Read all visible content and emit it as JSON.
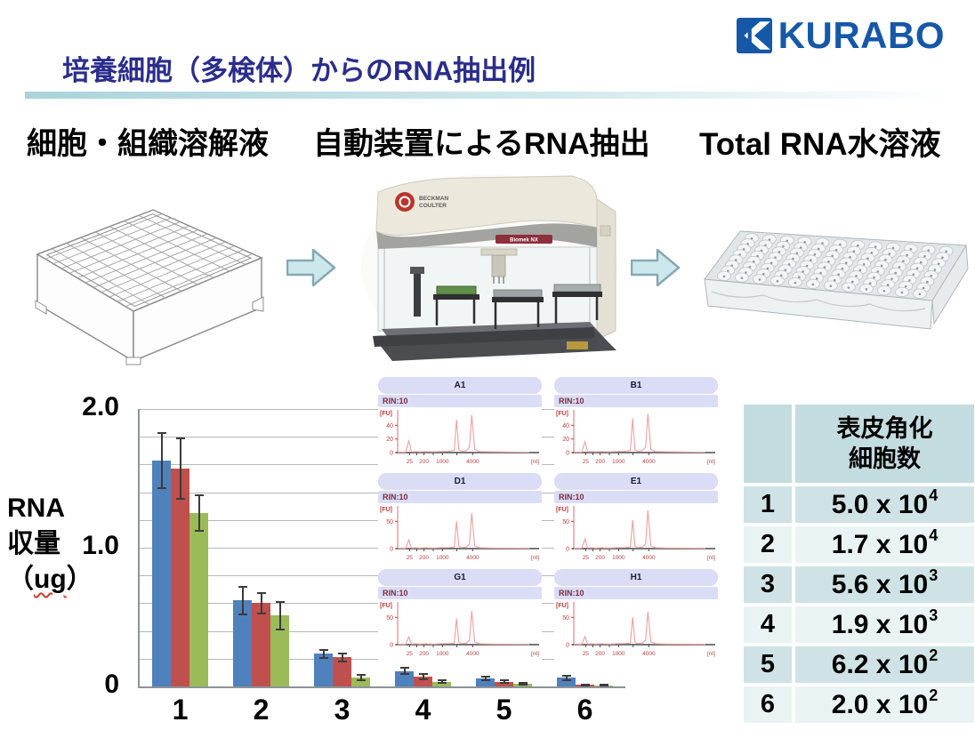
{
  "brand": {
    "logo_text": "KURABO",
    "color": "#1558a8"
  },
  "title": {
    "text": "培養細胞（多検体）からのRNA抽出例",
    "color": "#2b2d8c"
  },
  "workflow": {
    "steps": [
      {
        "label": "細胞・組織溶解液",
        "image": "96-deepwell-plate"
      },
      {
        "label": "自動装置によるRNA抽出",
        "image": "automated-liquid-handler"
      },
      {
        "label": "Total RNA水溶液",
        "image": "96-well-clear-microplate"
      }
    ],
    "machine": {
      "brand1": "BECKMAN",
      "brand2": "COULTER",
      "model": "Biomek NX"
    },
    "arrow_color": "#cde8ec"
  },
  "chart_data": [
    {
      "type": "bar",
      "categories": [
        "1",
        "2",
        "3",
        "4",
        "5",
        "6"
      ],
      "series": [
        {
          "name": "blue",
          "color": "#4F81BD",
          "values": [
            1.63,
            0.62,
            0.235,
            0.11,
            0.06,
            0.062
          ],
          "errors": [
            0.2,
            0.1,
            0.03,
            0.022,
            0.012,
            0.015
          ]
        },
        {
          "name": "red",
          "color": "#C0504D",
          "values": [
            1.57,
            0.6,
            0.21,
            0.07,
            0.035,
            0.012
          ],
          "errors": [
            0.22,
            0.072,
            0.028,
            0.018,
            0.008,
            0.004
          ]
        },
        {
          "name": "green",
          "color": "#9BBB59",
          "values": [
            1.25,
            0.51,
            0.065,
            0.035,
            0.02,
            0.007
          ],
          "errors": [
            0.13,
            0.1,
            0.02,
            0.012,
            0.006,
            0.003
          ]
        }
      ],
      "ylabel": {
        "l1": "RNA",
        "l2": "収量",
        "open": "（",
        "unit": "ug",
        "close": "）"
      },
      "xlabel": "",
      "ylim": [
        0,
        2.0
      ],
      "grid_interval": 0.2,
      "grid": true,
      "yticks": [
        {
          "value": 0,
          "label": "0"
        },
        {
          "value": 1.0,
          "label": "1.0"
        },
        {
          "value": 2.0,
          "label": "2.0"
        }
      ]
    },
    {
      "type": "line",
      "description": "bioanalyzer-electropherograms",
      "y_unit": "[FU]",
      "x_unit": "[nt]",
      "x_ticks_labeled": [
        {
          "label": "25",
          "pos": 0.09
        },
        {
          "label": "200",
          "pos": 0.2
        },
        {
          "label": "1000",
          "pos": 0.34
        },
        {
          "label": "4000",
          "pos": 0.57
        }
      ],
      "x_ticks_minor": [
        0.145,
        0.27,
        0.45
      ],
      "panels": [
        {
          "name": "A1",
          "rin": "RIN:10",
          "yticks": [
            0,
            20,
            40
          ],
          "ymax": 60,
          "marker_peak": 17,
          "peak_18s": 48,
          "peak_28s": 55
        },
        {
          "name": "B1",
          "rin": "RIN:10",
          "yticks": [
            0,
            20,
            40
          ],
          "ymax": 60,
          "marker_peak": 16,
          "peak_18s": 50,
          "peak_28s": 57
        },
        {
          "name": "D1",
          "rin": "RIN:10",
          "yticks": [
            0,
            50
          ],
          "ymax": 75,
          "marker_peak": 16,
          "peak_18s": 50,
          "peak_28s": 65
        },
        {
          "name": "E1",
          "rin": "RIN:10",
          "yticks": [
            0,
            50
          ],
          "ymax": 75,
          "marker_peak": 18,
          "peak_18s": 52,
          "peak_28s": 70
        },
        {
          "name": "G1",
          "rin": "RIN:10",
          "yticks": [
            0,
            50
          ],
          "ymax": 75,
          "marker_peak": 14,
          "peak_18s": 48,
          "peak_28s": 62
        },
        {
          "name": "H1",
          "rin": "RIN:10",
          "yticks": [
            0,
            50
          ],
          "ymax": 75,
          "marker_peak": 15,
          "peak_18s": 50,
          "peak_28s": 60
        }
      ]
    }
  ],
  "table": {
    "header": {
      "col1": "",
      "col2_line1": "表皮角化",
      "col2_line2": "細胞数"
    },
    "rows": [
      {
        "index": "1",
        "value": "5.0 x 10",
        "exp": "4"
      },
      {
        "index": "2",
        "value": "1.7 x 10",
        "exp": "4"
      },
      {
        "index": "3",
        "value": "5.6 x 10",
        "exp": "3"
      },
      {
        "index": "4",
        "value": "1.9 x 10",
        "exp": "3"
      },
      {
        "index": "5",
        "value": "6.2 x 10",
        "exp": "2"
      },
      {
        "index": "6",
        "value": "2.0 x 10",
        "exp": "2"
      }
    ],
    "colors": {
      "header": "#c3dcdf",
      "odd_row": "#cfe3e6",
      "even_row": "#eaf3f4"
    }
  }
}
